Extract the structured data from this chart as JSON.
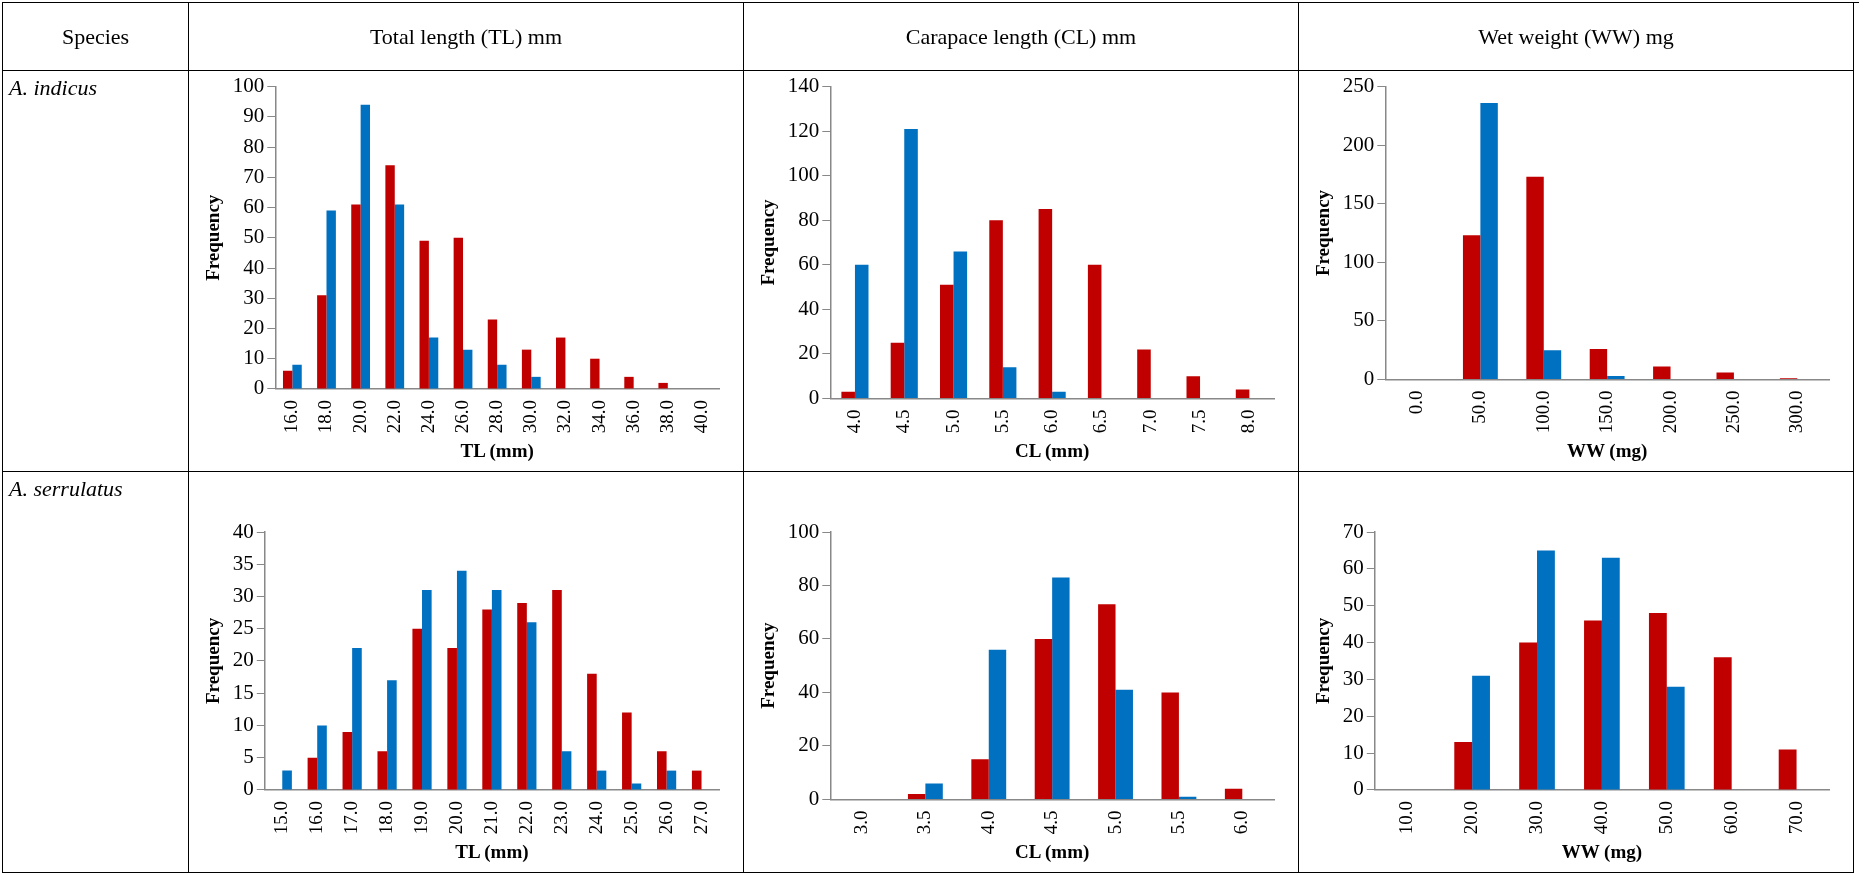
{
  "chart_data": [
    {
      "type": "bar",
      "title": "Total length (TL) mm",
      "annotations": [
        "Species",
        "A. indicus"
      ],
      "xlabel": "TL (mm)",
      "ylabel": "Frequency",
      "categories": [
        "16.0",
        "18.0",
        "20.0",
        "22.0",
        "24.0",
        "26.0",
        "28.0",
        "30.0",
        "32.0",
        "34.0",
        "36.0",
        "38.0",
        "40.0"
      ],
      "ylim": [
        0,
        100
      ],
      "yticks": [
        0,
        10,
        20,
        30,
        40,
        50,
        60,
        70,
        80,
        90,
        100
      ],
      "grid": false,
      "legend": false,
      "series": [
        {
          "color": "#c00000",
          "values": [
            6,
            31,
            61,
            74,
            49,
            50,
            23,
            13,
            17,
            10,
            4,
            2,
            0
          ]
        },
        {
          "color": "#0070c0",
          "values": [
            8,
            59,
            94,
            61,
            17,
            13,
            8,
            4,
            0,
            0,
            0,
            0,
            0
          ]
        }
      ]
    },
    {
      "type": "bar",
      "title": "Carapace length (CL) mm",
      "xlabel": "CL (mm)",
      "ylabel": "Frequency",
      "categories": [
        "4.0",
        "4.5",
        "5.0",
        "5.5",
        "6.0",
        "6.5",
        "7.0",
        "7.5",
        "8.0"
      ],
      "ylim": [
        0,
        140
      ],
      "yticks": [
        0,
        20,
        40,
        60,
        80,
        100,
        120,
        140
      ],
      "grid": false,
      "legend": false,
      "series": [
        {
          "color": "#c00000",
          "values": [
            3,
            25,
            51,
            80,
            85,
            60,
            22,
            10,
            4
          ]
        },
        {
          "color": "#0070c0",
          "values": [
            60,
            121,
            66,
            14,
            3,
            0,
            0,
            0,
            0
          ]
        }
      ]
    },
    {
      "type": "bar",
      "title": "Wet weight (WW) mg",
      "xlabel": "WW (mg)",
      "ylabel": "Frequency",
      "categories": [
        "0.0",
        "50.0",
        "100.0",
        "150.0",
        "200.0",
        "250.0",
        "300.0"
      ],
      "ylim": [
        0,
        250
      ],
      "yticks": [
        0,
        50,
        100,
        150,
        200,
        250
      ],
      "grid": false,
      "legend": false,
      "series": [
        {
          "color": "#c00000",
          "values": [
            0,
            123,
            173,
            26,
            11,
            6,
            1
          ]
        },
        {
          "color": "#0070c0",
          "values": [
            0,
            236,
            25,
            3,
            0,
            0,
            0
          ]
        }
      ]
    },
    {
      "type": "bar",
      "annotations": [
        "A. serrulatus"
      ],
      "xlabel": "TL (mm)",
      "ylabel": "Frequency",
      "categories": [
        "15.0",
        "16.0",
        "17.0",
        "18.0",
        "19.0",
        "20.0",
        "21.0",
        "22.0",
        "23.0",
        "24.0",
        "25.0",
        "26.0",
        "27.0"
      ],
      "ylim": [
        0,
        40
      ],
      "yticks": [
        0,
        5,
        10,
        15,
        20,
        25,
        30,
        35,
        40
      ],
      "grid": false,
      "legend": false,
      "series": [
        {
          "color": "#c00000",
          "values": [
            0,
            5,
            9,
            6,
            25,
            22,
            28,
            29,
            31,
            18,
            12,
            6,
            3
          ]
        },
        {
          "color": "#0070c0",
          "values": [
            3,
            10,
            22,
            17,
            31,
            34,
            31,
            26,
            6,
            3,
            1,
            3,
            0
          ]
        }
      ]
    },
    {
      "type": "bar",
      "xlabel": "CL (mm)",
      "ylabel": "Frequency",
      "categories": [
        "3.0",
        "3.5",
        "4.0",
        "4.5",
        "5.0",
        "5.5",
        "6.0"
      ],
      "ylim": [
        0,
        100
      ],
      "yticks": [
        0,
        20,
        40,
        60,
        80,
        100
      ],
      "grid": false,
      "legend": false,
      "series": [
        {
          "color": "#c00000",
          "values": [
            0,
            2,
            15,
            60,
            73,
            40,
            4
          ]
        },
        {
          "color": "#0070c0",
          "values": [
            0,
            6,
            56,
            83,
            41,
            1,
            0
          ]
        }
      ]
    },
    {
      "type": "bar",
      "xlabel": "WW (mg)",
      "ylabel": "Frequency",
      "categories": [
        "10.0",
        "20.0",
        "30.0",
        "40.0",
        "50.0",
        "60.0",
        "70.0"
      ],
      "ylim": [
        0,
        70
      ],
      "yticks": [
        0,
        10,
        20,
        30,
        40,
        50,
        60,
        70
      ],
      "grid": false,
      "legend": false,
      "series": [
        {
          "color": "#c00000",
          "values": [
            0,
            13,
            40,
            46,
            48,
            36,
            11
          ]
        },
        {
          "color": "#0070c0",
          "values": [
            0,
            31,
            65,
            63,
            28,
            0,
            0
          ]
        }
      ]
    }
  ]
}
